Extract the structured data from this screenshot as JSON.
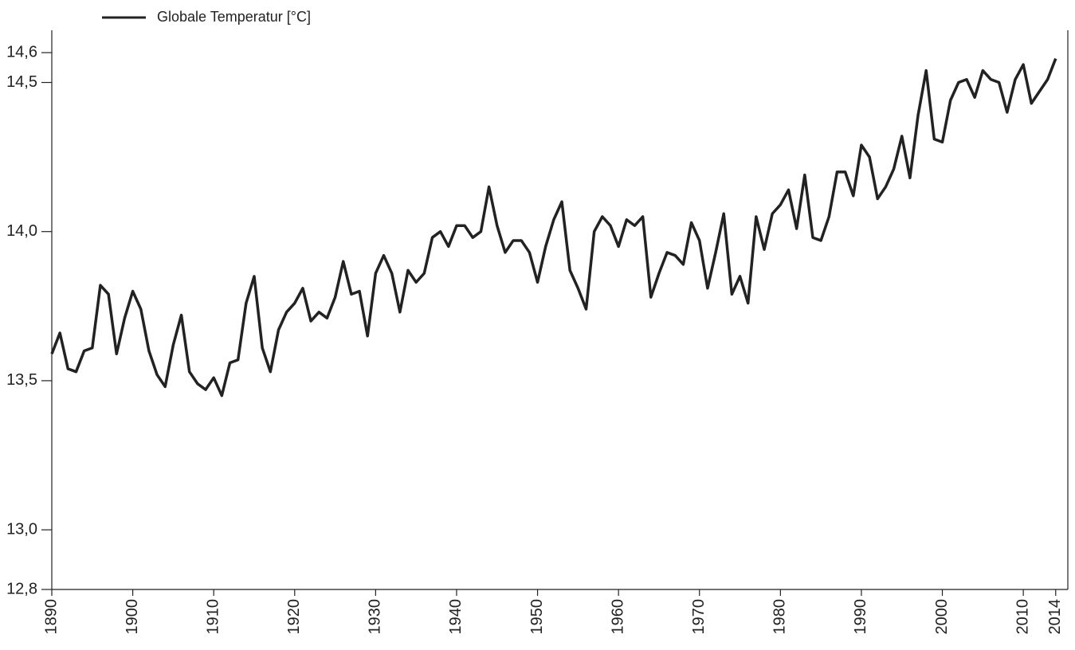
{
  "chart_data": {
    "type": "line",
    "x": [
      1890,
      1891,
      1892,
      1893,
      1894,
      1895,
      1896,
      1897,
      1898,
      1899,
      1900,
      1901,
      1902,
      1903,
      1904,
      1905,
      1906,
      1907,
      1908,
      1909,
      1910,
      1911,
      1912,
      1913,
      1914,
      1915,
      1916,
      1917,
      1918,
      1919,
      1920,
      1921,
      1922,
      1923,
      1924,
      1925,
      1926,
      1927,
      1928,
      1929,
      1930,
      1931,
      1932,
      1933,
      1934,
      1935,
      1936,
      1937,
      1938,
      1939,
      1940,
      1941,
      1942,
      1943,
      1944,
      1945,
      1946,
      1947,
      1948,
      1949,
      1950,
      1951,
      1952,
      1953,
      1954,
      1955,
      1956,
      1957,
      1958,
      1959,
      1960,
      1961,
      1962,
      1963,
      1964,
      1965,
      1966,
      1967,
      1968,
      1969,
      1970,
      1971,
      1972,
      1973,
      1974,
      1975,
      1976,
      1977,
      1978,
      1979,
      1980,
      1981,
      1982,
      1983,
      1984,
      1985,
      1986,
      1987,
      1988,
      1989,
      1990,
      1991,
      1992,
      1993,
      1994,
      1995,
      1996,
      1997,
      1998,
      1999,
      2000,
      2001,
      2002,
      2003,
      2004,
      2005,
      2006,
      2007,
      2008,
      2009,
      2010,
      2011,
      2012,
      2013,
      2014
    ],
    "series": [
      {
        "name": "Globale Temperatur [°C]",
        "color": "#222222",
        "values": [
          13.59,
          13.66,
          13.54,
          13.53,
          13.6,
          13.61,
          13.82,
          13.79,
          13.59,
          13.71,
          13.8,
          13.74,
          13.6,
          13.52,
          13.48,
          13.62,
          13.72,
          13.53,
          13.49,
          13.47,
          13.51,
          13.45,
          13.56,
          13.57,
          13.76,
          13.85,
          13.61,
          13.53,
          13.67,
          13.73,
          13.76,
          13.81,
          13.7,
          13.73,
          13.71,
          13.78,
          13.9,
          13.79,
          13.8,
          13.65,
          13.86,
          13.92,
          13.86,
          13.73,
          13.87,
          13.83,
          13.86,
          13.98,
          14.0,
          13.95,
          14.02,
          14.02,
          13.98,
          14.0,
          14.15,
          14.02,
          13.93,
          13.97,
          13.97,
          13.93,
          13.83,
          13.95,
          14.04,
          14.1,
          13.87,
          13.81,
          13.74,
          14.0,
          14.05,
          14.02,
          13.95,
          14.04,
          14.02,
          14.05,
          13.78,
          13.86,
          13.93,
          13.92,
          13.89,
          14.03,
          13.97,
          13.81,
          13.93,
          14.06,
          13.79,
          13.85,
          13.76,
          14.05,
          13.94,
          14.06,
          14.09,
          14.14,
          14.01,
          14.19,
          13.98,
          13.97,
          14.05,
          14.2,
          14.2,
          14.12,
          14.29,
          14.25,
          14.11,
          14.15,
          14.21,
          14.32,
          14.18,
          14.39,
          14.54,
          14.31,
          14.3,
          14.44,
          14.5,
          14.51,
          14.45,
          14.54,
          14.51,
          14.5,
          14.4,
          14.51,
          14.56,
          14.43,
          14.47,
          14.51,
          14.58
        ]
      }
    ],
    "xlim": [
      1890,
      2015.5
    ],
    "xticks": [
      1890,
      1900,
      1910,
      1920,
      1930,
      1940,
      1950,
      1960,
      1970,
      1980,
      1990,
      2000,
      2010,
      2014
    ],
    "ylim": [
      12.8,
      14.675
    ],
    "yticks": [
      {
        "value": 12.8,
        "label": "12,8"
      },
      {
        "value": 13.0,
        "label": "13,0"
      },
      {
        "value": 13.5,
        "label": "13,5"
      },
      {
        "value": 14.0,
        "label": "14,0"
      },
      {
        "value": 14.5,
        "label": "14,5"
      },
      {
        "value": 14.6,
        "label": "14,6"
      }
    ]
  }
}
